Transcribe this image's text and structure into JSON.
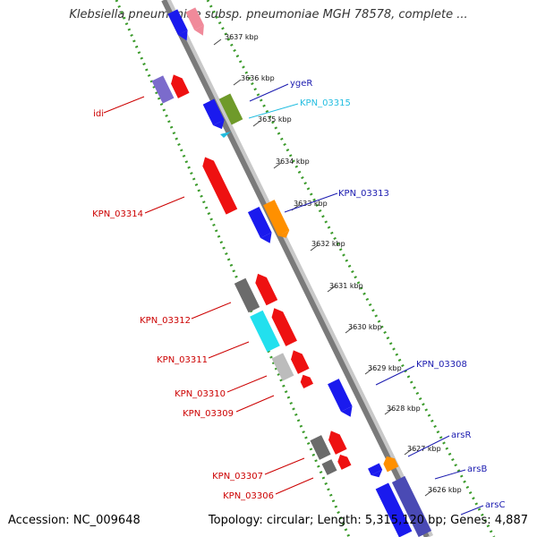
{
  "title": "Klebsiella pneumoniae subsp. pneumoniae MGH 78578, complete ...",
  "footer": {
    "accession": "Accession: NC_009648",
    "summary": "Topology: circular; Length: 5,315,120 bp; Genes: 4,887"
  },
  "colors": {
    "backbone": "#8c8c8c",
    "dots": "#3a9a2a",
    "label_left": "#cc0000",
    "label_blue": "#1b1bb0",
    "label_cyan": "#22bde0"
  },
  "ticks": [
    "3637 kbp",
    "3636 kbp",
    "3635 kbp",
    "3634 kbp",
    "3633 kbp",
    "3632 kbp",
    "3631 kbp",
    "3630 kbp",
    "3629 kbp",
    "3628 kbp",
    "3627 kbp",
    "3626 kbp"
  ],
  "gene_labels_left": [
    "idi",
    "KPN_03314",
    "KPN_03312",
    "KPN_03311",
    "KPN_03310",
    "KPN_03309",
    "KPN_03307",
    "KPN_03306"
  ],
  "gene_labels_right": [
    "ygeR",
    "KPN_03315",
    "KPN_03313",
    "KPN_03308",
    "arsR",
    "arsB",
    "arsC"
  ]
}
